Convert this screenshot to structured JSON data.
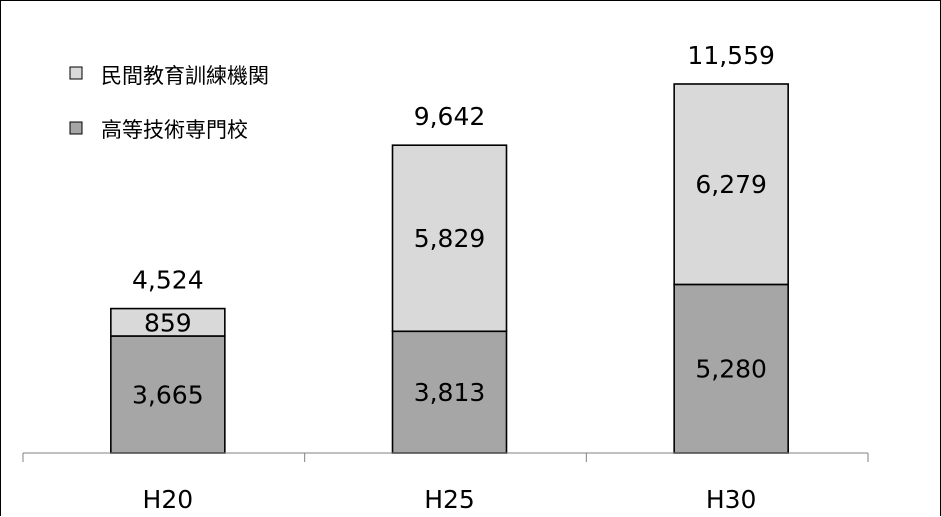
{
  "chart_data": {
    "type": "bar",
    "stacked": true,
    "categories": [
      "H20",
      "H25",
      "H30"
    ],
    "series": [
      {
        "name": "高等技術専門校",
        "values": [
          3665,
          3813,
          5280
        ],
        "color": "#a6a6a6"
      },
      {
        "name": "民間教育訓練機関",
        "values": [
          859,
          5829,
          6279
        ],
        "color": "#d9d9d9"
      }
    ],
    "totals": [
      4524,
      9642,
      11559
    ],
    "value_labels": [
      [
        "3,665",
        "3,813",
        "5,280"
      ],
      [
        "859",
        "5,829",
        "6,279"
      ]
    ],
    "total_labels": [
      "4,524",
      "9,642",
      "11,559"
    ],
    "ylim": [
      0,
      13000
    ],
    "grid": false,
    "legend_position": "top-left"
  },
  "legend": {
    "items": [
      {
        "label": "民間教育訓練機関",
        "color": "#d9d9d9"
      },
      {
        "label": "高等技術専門校",
        "color": "#a6a6a6"
      }
    ]
  }
}
